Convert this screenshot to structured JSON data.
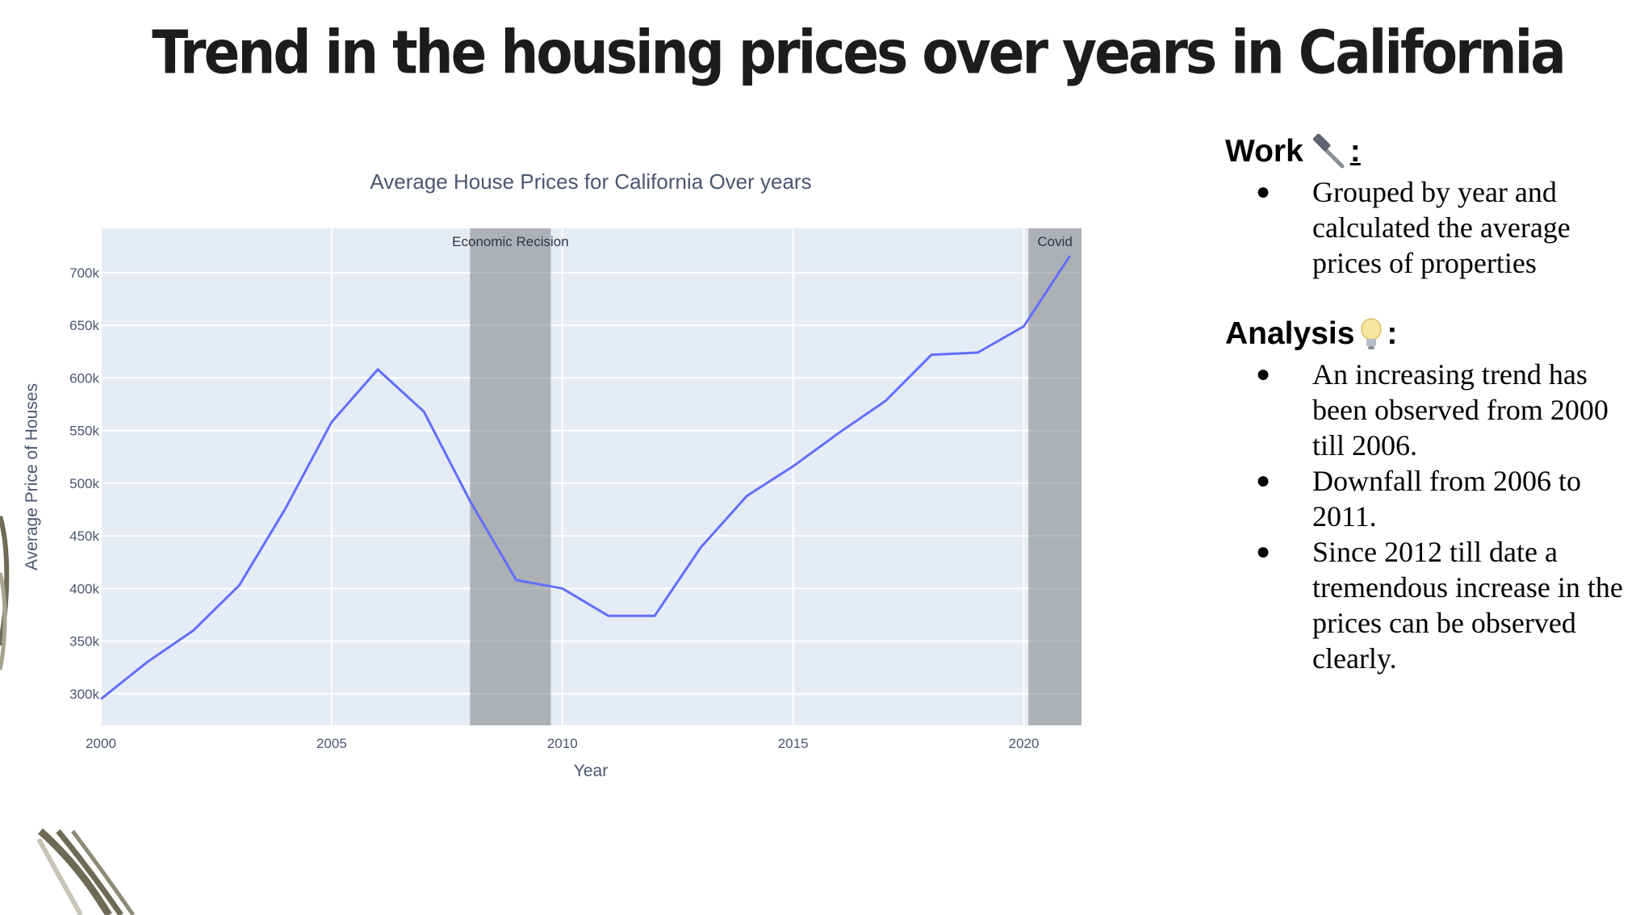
{
  "slide": {
    "title": "Trend in the housing prices over years in California"
  },
  "side_panel": {
    "work_heading": "Work",
    "work_icon": "hammer-icon",
    "work_bullets": [
      "Grouped by  year and calculated the average prices of properties"
    ],
    "analysis_heading": "Analysis",
    "analysis_icon": "lightbulb-icon",
    "colon": ":",
    "analysis_bullets": [
      "An increasing trend has been observed from 2000 till 2006.",
      "Downfall from 2006 to 2011.",
      "Since 2012 till date a tremendous increase in the prices can be observed clearly."
    ]
  },
  "chart_data": {
    "type": "line",
    "title": "Average House Prices for California Over years",
    "xlabel": "Year",
    "ylabel": "Average Price of Houses",
    "x": [
      2000,
      2001,
      2002,
      2003,
      2004,
      2005,
      2006,
      2007,
      2008,
      2009,
      2010,
      2011,
      2012,
      2013,
      2014,
      2015,
      2016,
      2017,
      2018,
      2019,
      2020,
      2021
    ],
    "series": [
      {
        "values": [
          295000,
          330000,
          360000,
          403000,
          476000,
          558000,
          608000,
          568000,
          483000,
          408000,
          400000,
          374000,
          374000,
          439000,
          488000,
          516000,
          548000,
          578000,
          622000,
          624000,
          649000,
          716000
        ],
        "color": "#636efa"
      }
    ],
    "xlim": [
      2000,
      2021.25
    ],
    "ylim": [
      270000,
      742000
    ],
    "x_ticks": [
      2000,
      2005,
      2010,
      2015,
      2020
    ],
    "x_tick_labels": [
      "2000",
      "2005",
      "2010",
      "2015",
      "2020"
    ],
    "y_ticks": [
      300000,
      350000,
      400000,
      450000,
      500000,
      550000,
      600000,
      650000,
      700000
    ],
    "y_tick_labels": [
      "300k",
      "350k",
      "400k",
      "450k",
      "500k",
      "550k",
      "600k",
      "650k",
      "700k"
    ],
    "shaded_regions": [
      {
        "label": "Economic Recision",
        "x0": 2008,
        "x1": 2009.75
      },
      {
        "label": "Covid",
        "x0": 2020.1,
        "x1": 2021.25
      }
    ],
    "grid": true,
    "plot_background": "#e5ecf6",
    "region_color": "#7f7f7f"
  }
}
